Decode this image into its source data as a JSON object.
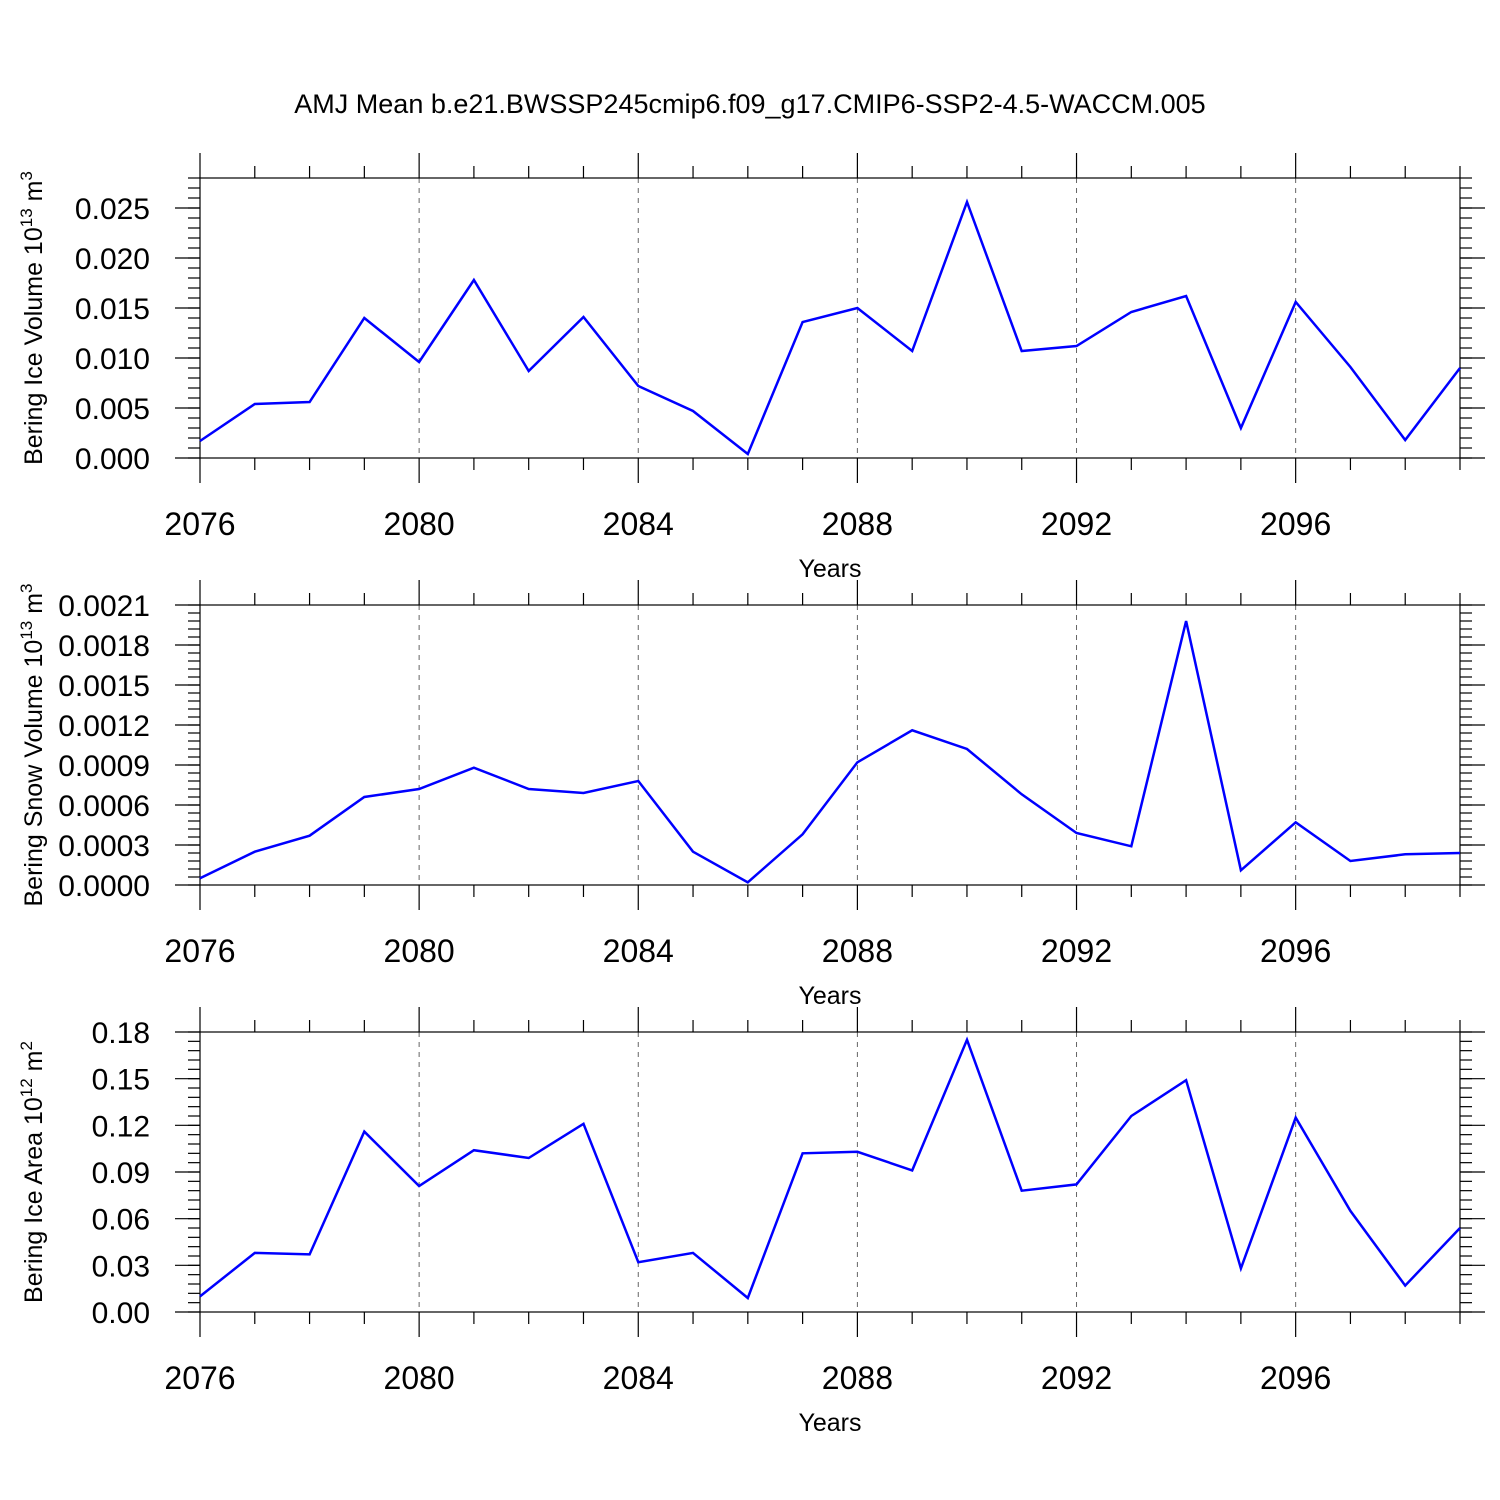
{
  "figure_title": "AMJ Mean b.e21.BWSSP245cmip6.f09_g17.CMIP6-SSP2-4.5-WACCM.005",
  "colors": {
    "series": "#0000ff",
    "axes": "#000000",
    "background": "#ffffff"
  },
  "chart_data": [
    {
      "type": "line",
      "ylabel": {
        "base": "Bering Ice Volume 10",
        "exp": "13",
        "unit": " m",
        "unit_exp": "3"
      },
      "xlabel": "Years",
      "x_ticks": [
        "2076",
        "2080",
        "2084",
        "2088",
        "2092",
        "2096"
      ],
      "xlim": [
        2076,
        2099
      ],
      "ylim": [
        0,
        0.028
      ],
      "y_ticks": [
        "0.000",
        "0.005",
        "0.010",
        "0.015",
        "0.020",
        "0.025"
      ],
      "grid": "vertical dashed at major x ticks",
      "x": [
        2076,
        2077,
        2078,
        2079,
        2080,
        2081,
        2082,
        2083,
        2084,
        2085,
        2086,
        2087,
        2088,
        2089,
        2090,
        2091,
        2092,
        2093,
        2094,
        2095,
        2096,
        2097,
        2098,
        2099
      ],
      "series": [
        {
          "values": [
            0.0017,
            0.0054,
            0.0056,
            0.014,
            0.0096,
            0.0178,
            0.0087,
            0.0141,
            0.0072,
            0.0047,
            0.0004,
            0.0136,
            0.015,
            0.0107,
            0.0256,
            0.0107,
            0.0112,
            0.0146,
            0.0162,
            0.003,
            0.0156,
            0.0091,
            0.0018,
            0.009
          ]
        }
      ]
    },
    {
      "type": "line",
      "ylabel": {
        "base": "Bering Snow Volume 10",
        "exp": "13",
        "unit": " m",
        "unit_exp": "3"
      },
      "xlabel": "Years",
      "x_ticks": [
        "2076",
        "2080",
        "2084",
        "2088",
        "2092",
        "2096"
      ],
      "xlim": [
        2076,
        2099
      ],
      "ylim": [
        0,
        0.0021
      ],
      "y_ticks": [
        "0.0000",
        "0.0003",
        "0.0006",
        "0.0009",
        "0.0012",
        "0.0015",
        "0.0018",
        "0.0021"
      ],
      "grid": "vertical dashed at major x ticks",
      "x": [
        2076,
        2077,
        2078,
        2079,
        2080,
        2081,
        2082,
        2083,
        2084,
        2085,
        2086,
        2087,
        2088,
        2089,
        2090,
        2091,
        2092,
        2093,
        2094,
        2095,
        2096,
        2097,
        2098,
        2099
      ],
      "series": [
        {
          "values": [
            5e-05,
            0.00025,
            0.00037,
            0.00066,
            0.00072,
            0.00088,
            0.00072,
            0.00069,
            0.00078,
            0.00025,
            2e-05,
            0.00038,
            0.00092,
            0.00116,
            0.00102,
            0.00068,
            0.00039,
            0.00029,
            0.00198,
            0.00011,
            0.00047,
            0.00018,
            0.00023,
            0.00024
          ]
        }
      ]
    },
    {
      "type": "line",
      "ylabel": {
        "base": "Bering Ice Area 10",
        "exp": "12",
        "unit": " m",
        "unit_exp": "2"
      },
      "xlabel": "Years",
      "x_ticks": [
        "2076",
        "2080",
        "2084",
        "2088",
        "2092",
        "2096"
      ],
      "xlim": [
        2076,
        2099
      ],
      "ylim": [
        0,
        0.18
      ],
      "y_ticks": [
        "0.00",
        "0.03",
        "0.06",
        "0.09",
        "0.12",
        "0.15",
        "0.18"
      ],
      "grid": "vertical dashed at major x ticks",
      "x": [
        2076,
        2077,
        2078,
        2079,
        2080,
        2081,
        2082,
        2083,
        2084,
        2085,
        2086,
        2087,
        2088,
        2089,
        2090,
        2091,
        2092,
        2093,
        2094,
        2095,
        2096,
        2097,
        2098,
        2099
      ],
      "series": [
        {
          "values": [
            0.01,
            0.038,
            0.037,
            0.116,
            0.081,
            0.104,
            0.099,
            0.121,
            0.032,
            0.038,
            0.009,
            0.102,
            0.103,
            0.091,
            0.175,
            0.078,
            0.082,
            0.126,
            0.149,
            0.028,
            0.125,
            0.065,
            0.017,
            0.054
          ]
        }
      ]
    }
  ]
}
